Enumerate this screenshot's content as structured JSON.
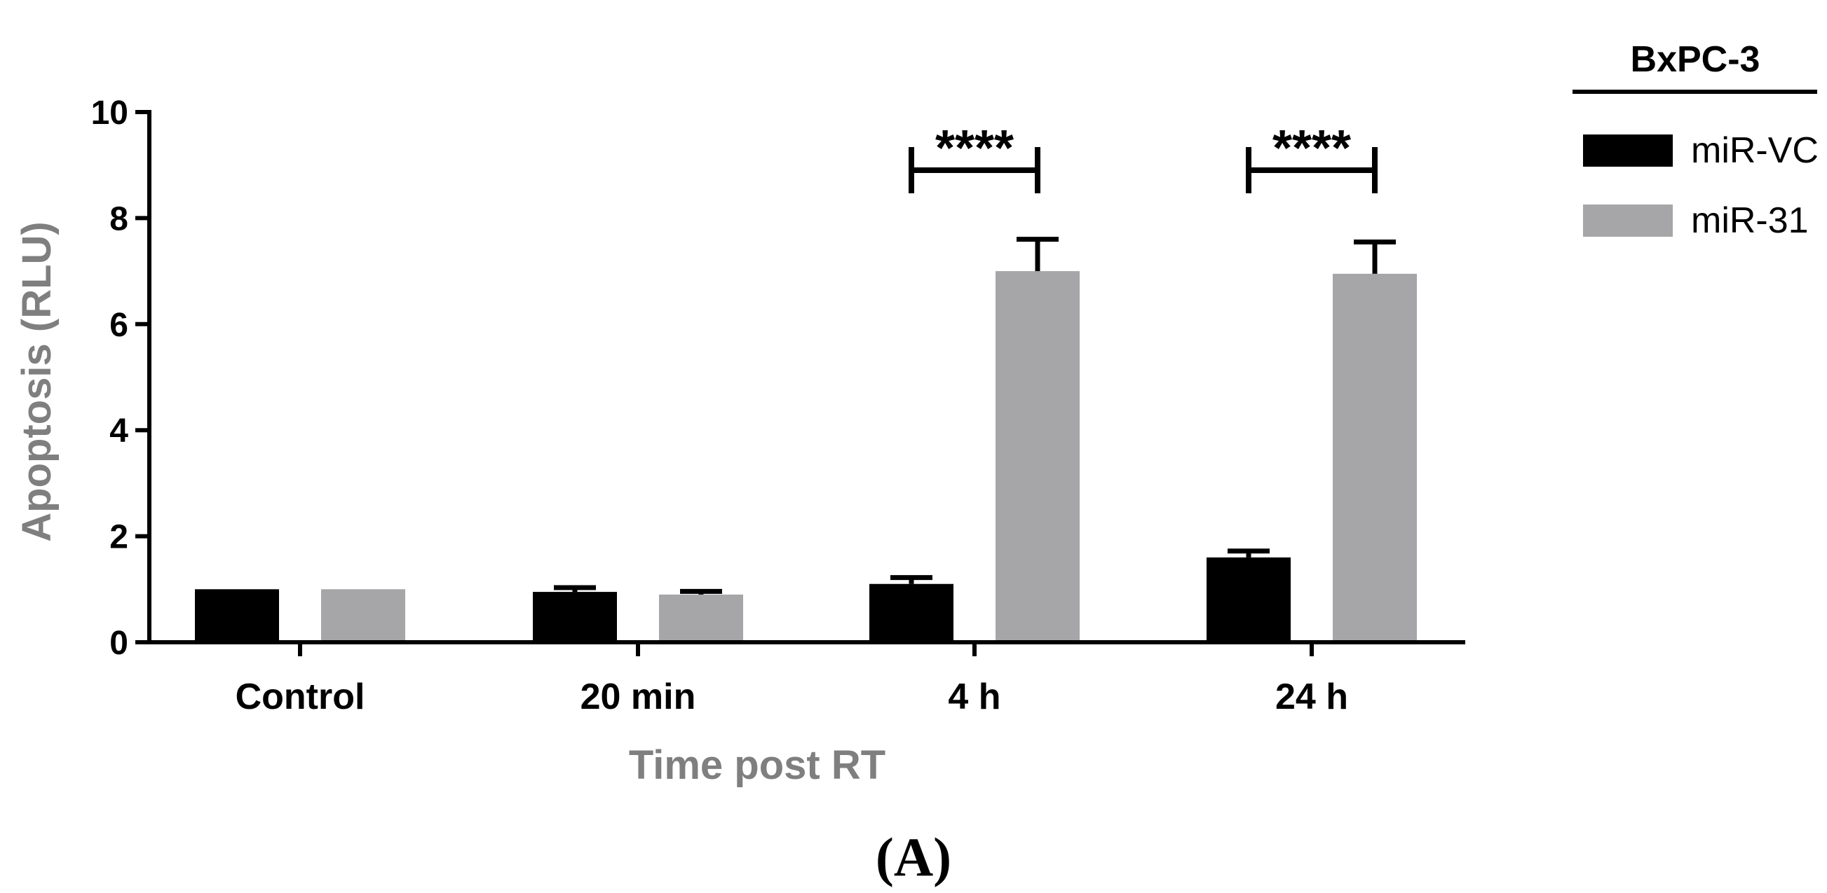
{
  "chart_data": {
    "type": "bar",
    "categories": [
      "Control",
      "20 min",
      "4 h",
      "24 h"
    ],
    "series": [
      {
        "name": "miR-VC",
        "color": "#000000",
        "values": [
          1.0,
          0.95,
          1.1,
          1.6
        ],
        "errors": [
          0.0,
          0.08,
          0.12,
          0.12
        ]
      },
      {
        "name": "miR-31",
        "color": "#a6a6a8",
        "values": [
          1.0,
          0.9,
          7.0,
          6.95
        ],
        "errors": [
          0.0,
          0.06,
          0.6,
          0.6
        ]
      }
    ],
    "xlabel": "Time post RT",
    "ylabel": "Apoptosis (RLU)",
    "ylim": [
      0,
      10
    ],
    "yticks": [
      0,
      2,
      4,
      6,
      8,
      10
    ],
    "legend_title": "BxPC-3",
    "legend_position": "top-right",
    "grid": false,
    "significance": [
      {
        "category": "4 h",
        "label": "****"
      },
      {
        "category": "24 h",
        "label": "****"
      }
    ],
    "panel_label": "(A)"
  }
}
